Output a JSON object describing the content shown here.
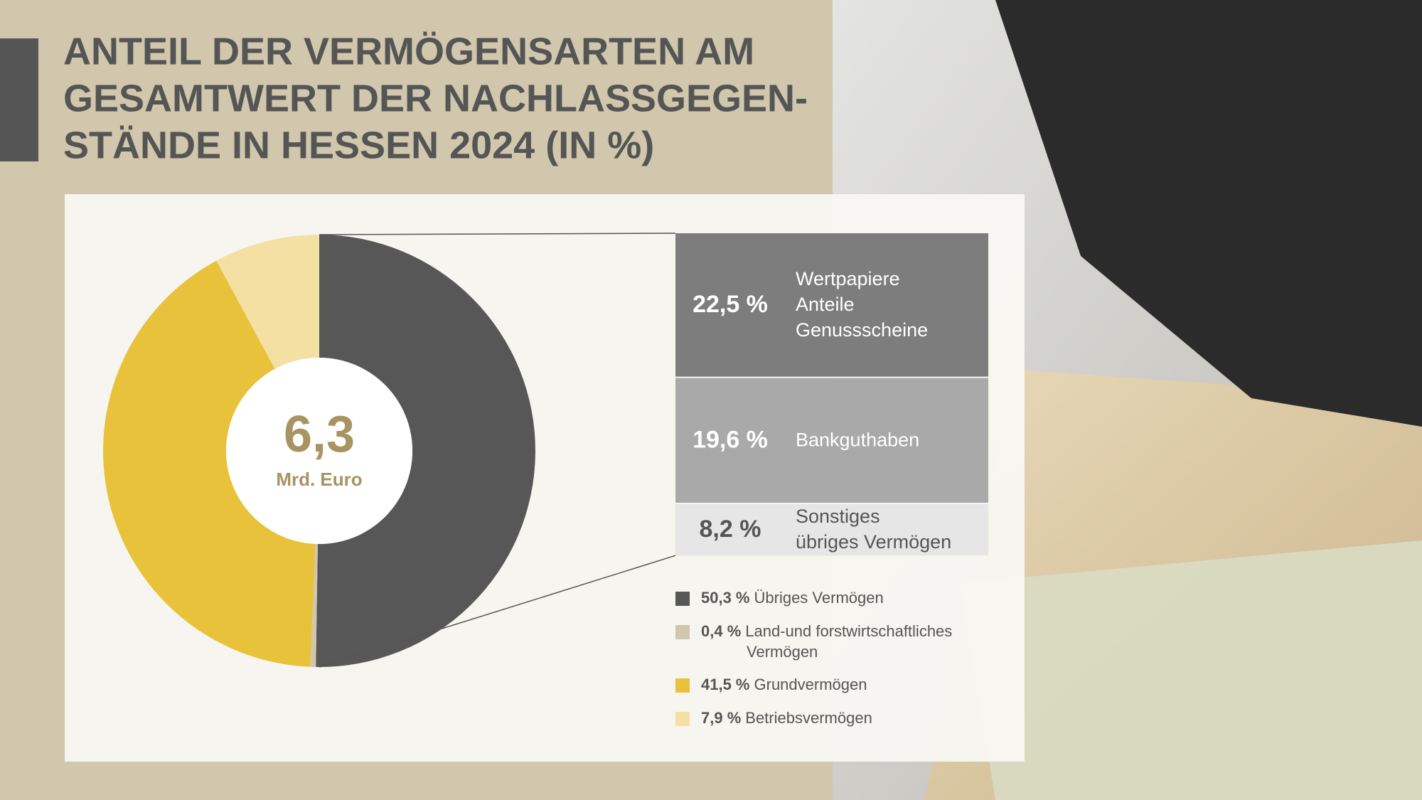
{
  "chart_data": {
    "type": "pie",
    "title": [
      "ANTEIL DER VERMÖGENSARTEN AM",
      "GESAMTWERT DER NACHLASSGEGEN-",
      "STÄNDE IN HESSEN 2024 (IN %)"
    ],
    "center": {
      "value": 6.3,
      "label": "6,3",
      "unit": "Mrd. Euro"
    },
    "categories": [
      [
        "Übriges Vermögen"
      ],
      [
        "Land-und forstwirtschaftliches",
        "Vermögen"
      ],
      [
        "Grundvermögen"
      ],
      [
        "Betriebsvermögen"
      ]
    ],
    "values": [
      50.3,
      0.4,
      41.5,
      7.9
    ],
    "value_labels": [
      "50,3 %",
      "0,4 %",
      "41,5 %",
      "7,9 %"
    ],
    "colors": [
      "#575757",
      "#d1c7ad",
      "#e8c23a",
      "#f4e0a2"
    ],
    "breakdown": {
      "names": [
        [
          "Wertpapiere",
          "Anteile",
          "Genussscheine"
        ],
        [
          "Bankguthaben"
        ],
        [
          "Sonstiges",
          "übriges Vermögen"
        ]
      ],
      "values": [
        22.5,
        19.6,
        8.2
      ],
      "value_labels": [
        "22,5 %",
        "19,6 %",
        "8,2 %"
      ],
      "colors": [
        "#7e7d7d",
        "#a9a9a9",
        "#e6e6e6"
      ]
    }
  }
}
